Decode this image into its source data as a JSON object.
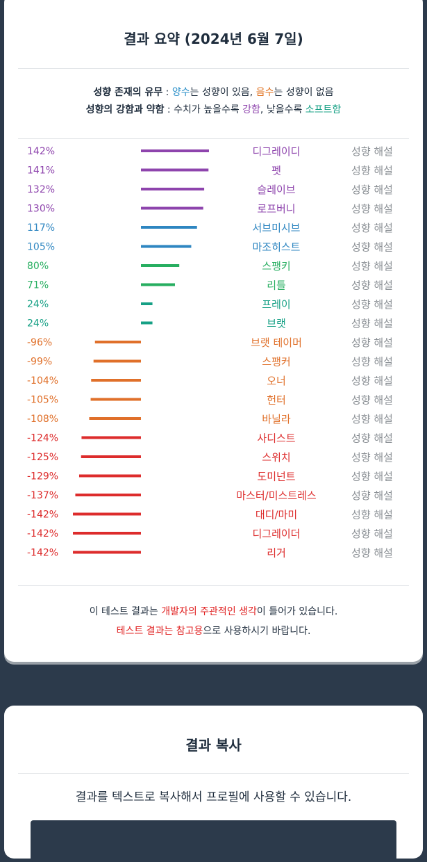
{
  "summary": {
    "title": "결과 요약 (2024년 6월 7일)",
    "legend_line1": {
      "label": "성향 존재의 유무",
      "sep": " : ",
      "positive": "양수",
      "text_a": "는 성향이 있음, ",
      "negative": "음수",
      "text_b": "는 성향이 없음"
    },
    "legend_line2": {
      "label": "성향의 강함과 약함",
      "sep": " : ",
      "text_a": "수치가 높을수록 ",
      "strong": "강함",
      "text_b": ", 낮을수록 ",
      "soft": "소프트함"
    },
    "explain_label": "성향 해설",
    "note_line1": {
      "a": "이 테스트 결과는 ",
      "highlight": "개발자의 주관적인 생각",
      "b": "이 들어가 있습니다."
    },
    "note_line2": {
      "highlight": "테스트 결과는 참고용",
      "b": "으로 사용하시기 바랍니다."
    }
  },
  "copy": {
    "title": "결과 복사",
    "description": "결과를 텍스트로 복사해서 프로필에 사용할 수 있습니다."
  },
  "colors": {
    "purple": "#8e44ad",
    "blue": "#2e86c1",
    "green": "#27ae60",
    "teal": "#16a085",
    "orange": "#e0702a",
    "red": "#dd2c2c"
  },
  "chart_data": {
    "type": "bar",
    "orientation": "horizontal",
    "xlim": [
      -150,
      150
    ],
    "categories": [
      "디그레이디",
      "펫",
      "슬레이브",
      "로프버니",
      "서브미시브",
      "마조히스트",
      "스팽키",
      "리틀",
      "프레이",
      "브랫",
      "브랫 테이머",
      "스팽커",
      "오너",
      "헌터",
      "바닐라",
      "사디스트",
      "스위치",
      "도미넌트",
      "마스터/미스트레스",
      "대디/마미",
      "디그레이더",
      "리거"
    ],
    "values": [
      142,
      141,
      132,
      130,
      117,
      105,
      80,
      71,
      24,
      24,
      -96,
      -99,
      -104,
      -105,
      -108,
      -124,
      -125,
      -129,
      -137,
      -142,
      -142,
      -142
    ],
    "labels": [
      "142%",
      "141%",
      "132%",
      "130%",
      "117%",
      "105%",
      "80%",
      "71%",
      "24%",
      "24%",
      "-96%",
      "-99%",
      "-104%",
      "-105%",
      "-108%",
      "-124%",
      "-125%",
      "-129%",
      "-137%",
      "-142%",
      "-142%",
      "-142%"
    ],
    "bar_colors": [
      "purple",
      "purple",
      "purple",
      "purple",
      "blue",
      "blue",
      "green",
      "green",
      "teal",
      "teal",
      "orange",
      "orange",
      "orange",
      "orange",
      "orange",
      "red",
      "red",
      "red",
      "red",
      "red",
      "red",
      "red"
    ]
  }
}
